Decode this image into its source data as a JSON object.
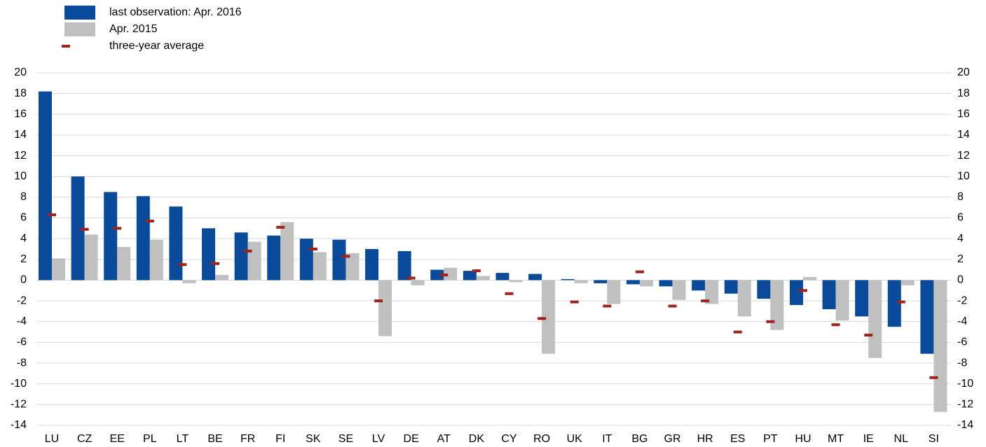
{
  "chart_data": {
    "type": "bar",
    "categories": [
      "LU",
      "CZ",
      "EE",
      "PL",
      "LT",
      "BE",
      "FR",
      "FI",
      "SK",
      "SE",
      "LV",
      "DE",
      "AT",
      "DK",
      "CY",
      "RO",
      "UK",
      "IT",
      "BG",
      "GR",
      "HR",
      "ES",
      "PT",
      "HU",
      "MT",
      "IE",
      "NL",
      "SI"
    ],
    "series": [
      {
        "name": "last observation: Apr. 2016",
        "color": "#0a4a9a",
        "mark": "bar",
        "values": [
          18.2,
          10.0,
          8.5,
          8.1,
          7.1,
          5.0,
          4.6,
          4.3,
          4.0,
          3.9,
          3.0,
          2.8,
          1.0,
          0.9,
          0.7,
          0.6,
          0.1,
          -0.3,
          -0.4,
          -0.6,
          -1.0,
          -1.3,
          -1.8,
          -2.4,
          -2.8,
          -3.5,
          -4.5,
          -7.1
        ]
      },
      {
        "name": "Apr. 2015",
        "color": "#c0c0c0",
        "mark": "bar",
        "values": [
          2.1,
          4.4,
          3.2,
          3.9,
          -0.3,
          0.5,
          3.7,
          5.6,
          2.7,
          2.6,
          -5.4,
          -0.5,
          1.2,
          0.4,
          -0.2,
          -7.1,
          -0.3,
          -2.3,
          -0.6,
          -1.9,
          -2.3,
          -3.5,
          -4.8,
          0.3,
          -3.9,
          -7.5,
          -0.5,
          -12.7
        ]
      },
      {
        "name": "three-year average",
        "color": "#a0231b",
        "mark": "dash",
        "values": [
          6.3,
          4.9,
          5.0,
          5.7,
          1.5,
          1.6,
          2.8,
          5.1,
          3.0,
          2.3,
          -2.0,
          0.2,
          0.5,
          0.9,
          -1.3,
          -3.7,
          -2.1,
          -2.5,
          0.8,
          -2.5,
          -2.0,
          -5.0,
          -4.0,
          -1.0,
          -4.3,
          -5.3,
          -2.1,
          -9.4
        ]
      }
    ],
    "ylim": [
      -14,
      20
    ],
    "yticks": [
      -14,
      -12,
      -10,
      -8,
      -6,
      -4,
      -2,
      0,
      2,
      4,
      6,
      8,
      10,
      12,
      14,
      16,
      18,
      20
    ],
    "grid": true
  }
}
